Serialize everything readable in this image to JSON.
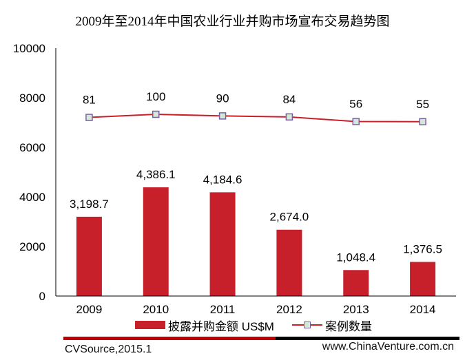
{
  "chart_data": {
    "type": "bar",
    "title": "2009年至2014年中国农业行业并购市场宣布交易趋势图",
    "categories": [
      "2009",
      "2010",
      "2011",
      "2012",
      "2013",
      "2014"
    ],
    "series": [
      {
        "name": "披露并购金额 US$M",
        "type": "bar",
        "axis": "primary",
        "values": [
          3198.7,
          4386.1,
          4184.6,
          2674.0,
          1048.4,
          1376.5
        ],
        "labels": [
          "3,198.7",
          "4,386.1",
          "4,184.6",
          "2,674.0",
          "1,048.4",
          "1,376.5"
        ],
        "color": "#C8202B"
      },
      {
        "name": "案例数量",
        "type": "line",
        "axis": "secondary-hidden",
        "values": [
          81,
          100,
          90,
          84,
          56,
          55
        ],
        "labels": [
          "81",
          "100",
          "90",
          "84",
          "56",
          "55"
        ],
        "color": "#C8202B",
        "marker_fill": "#D4E8D8",
        "marker_edge": "#7A5FA0"
      }
    ],
    "ylim": [
      0,
      10000
    ],
    "yticks": [
      "0",
      "2000",
      "4000",
      "6000",
      "8000",
      "10000"
    ],
    "y2lim": [
      -1000,
      500
    ],
    "xlabel": "",
    "ylabel": "",
    "grid": false,
    "legend": "bottom"
  },
  "footer": {
    "source": "CVSource,2015.1",
    "website": "www.ChinaVenture.com.cn"
  }
}
